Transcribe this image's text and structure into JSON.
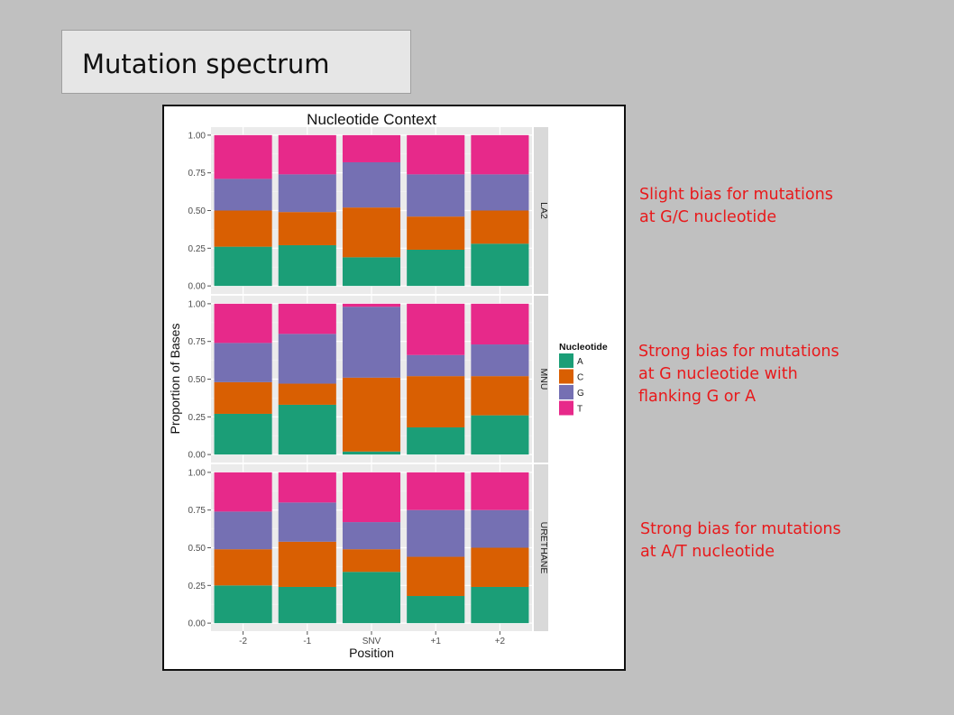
{
  "slide": {
    "title": "Mutation spectrum",
    "notes": [
      {
        "lines": [
          "Slight bias for mutations",
          "at G/C nucleotide"
        ]
      },
      {
        "lines": [
          "Strong bias for mutations",
          "at G nucleotide with",
          "flanking G or A"
        ]
      },
      {
        "lines": [
          "Strong bias for mutations",
          "at A/T nucleotide"
        ]
      }
    ]
  },
  "chart_data": {
    "type": "bar",
    "stacked": true,
    "title": "Nucleotide Context",
    "xlabel": "Position",
    "ylabel": "Proportion of Bases",
    "ylim": [
      0,
      1
    ],
    "yticks": [
      "0.00",
      "0.25",
      "0.50",
      "0.75",
      "1.00"
    ],
    "categories": [
      "-2",
      "-1",
      "SNV",
      "+1",
      "+2"
    ],
    "legend": {
      "title": "Nucleotide",
      "position": "right",
      "entries": [
        {
          "name": "A",
          "color": "#1b9e77"
        },
        {
          "name": "C",
          "color": "#d95f02"
        },
        {
          "name": "G",
          "color": "#7570b3"
        },
        {
          "name": "T",
          "color": "#e7298a"
        }
      ]
    },
    "facets": [
      {
        "name": "LA2",
        "series": [
          {
            "name": "A",
            "values": [
              0.26,
              0.27,
              0.19,
              0.24,
              0.28
            ]
          },
          {
            "name": "C",
            "values": [
              0.24,
              0.22,
              0.33,
              0.22,
              0.22
            ]
          },
          {
            "name": "G",
            "values": [
              0.21,
              0.25,
              0.3,
              0.28,
              0.24
            ]
          },
          {
            "name": "T",
            "values": [
              0.29,
              0.26,
              0.18,
              0.26,
              0.26
            ]
          }
        ]
      },
      {
        "name": "MNU",
        "series": [
          {
            "name": "A",
            "values": [
              0.27,
              0.33,
              0.02,
              0.18,
              0.26
            ]
          },
          {
            "name": "C",
            "values": [
              0.21,
              0.14,
              0.49,
              0.34,
              0.26
            ]
          },
          {
            "name": "G",
            "values": [
              0.26,
              0.33,
              0.47,
              0.14,
              0.21
            ]
          },
          {
            "name": "T",
            "values": [
              0.26,
              0.2,
              0.02,
              0.34,
              0.27
            ]
          }
        ]
      },
      {
        "name": "URETHANE",
        "series": [
          {
            "name": "A",
            "values": [
              0.25,
              0.24,
              0.34,
              0.18,
              0.24
            ]
          },
          {
            "name": "C",
            "values": [
              0.24,
              0.3,
              0.15,
              0.26,
              0.26
            ]
          },
          {
            "name": "G",
            "values": [
              0.25,
              0.26,
              0.18,
              0.31,
              0.25
            ]
          },
          {
            "name": "T",
            "values": [
              0.26,
              0.2,
              0.33,
              0.25,
              0.25
            ]
          }
        ]
      }
    ]
  }
}
